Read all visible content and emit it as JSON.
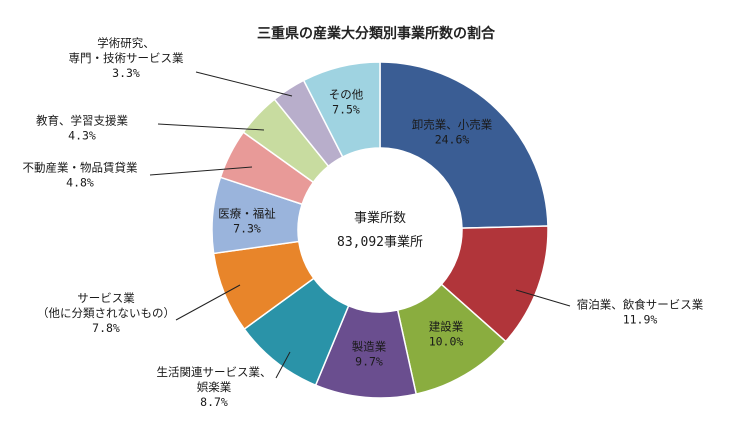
{
  "chart_data": {
    "type": "pie",
    "donut": true,
    "title": "三重県の産業大分類別事業所数の割合",
    "center_label": {
      "line1": "事業所数",
      "line2": "83,092事業所"
    },
    "slices": [
      {
        "lines": [
          "卸売業、小売業"
        ],
        "value": 24.6,
        "value_text": "24.6%",
        "color": "#3a5d94"
      },
      {
        "lines": [
          "宿泊業、飲食サービス業"
        ],
        "value": 11.9,
        "value_text": "11.9%",
        "color": "#b1353a"
      },
      {
        "lines": [
          "建設業"
        ],
        "value": 10.0,
        "value_text": "10.0%",
        "color": "#8aad3f"
      },
      {
        "lines": [
          "製造業"
        ],
        "value": 9.7,
        "value_text": "9.7%",
        "color": "#6a4e8f"
      },
      {
        "lines": [
          "生活関連サービス業、",
          "娯楽業"
        ],
        "value": 8.7,
        "value_text": "8.7%",
        "color": "#2a93a8"
      },
      {
        "lines": [
          "サービス業",
          "（他に分類されないもの）"
        ],
        "value": 7.8,
        "value_text": "7.8%",
        "color": "#e8852a"
      },
      {
        "lines": [
          "医療・福祉"
        ],
        "value": 7.3,
        "value_text": "7.3%",
        "color": "#9ab4dc"
      },
      {
        "lines": [
          "不動産業・物品賃貸業"
        ],
        "value": 4.8,
        "value_text": "4.8%",
        "color": "#e89a98"
      },
      {
        "lines": [
          "教育、学習支援業"
        ],
        "value": 4.3,
        "value_text": "4.3%",
        "color": "#c8dca0"
      },
      {
        "lines": [
          "学術研究、",
          "専門・技術サービス業"
        ],
        "value": 3.3,
        "value_text": "3.3%",
        "color": "#b8aecb"
      },
      {
        "lines": [
          "その他"
        ],
        "value": 7.5,
        "value_text": "7.5%",
        "color": "#9fd3e1"
      }
    ]
  }
}
